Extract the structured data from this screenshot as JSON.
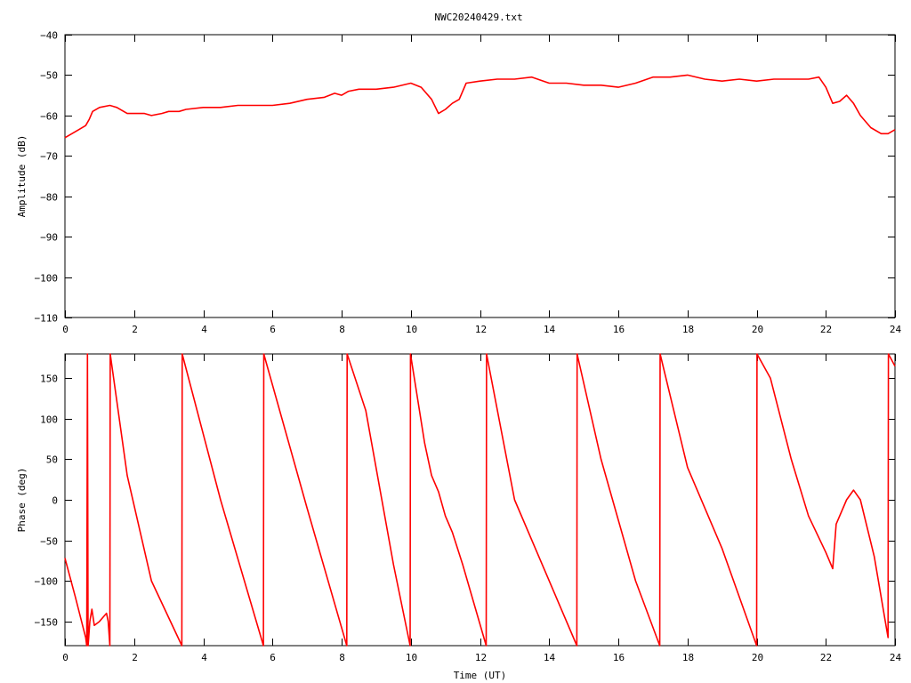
{
  "title": "NWC20240429.txt",
  "colors": {
    "series": "#ff0000",
    "axes": "#000000",
    "background": "#ffffff"
  },
  "chart_data": [
    {
      "type": "line",
      "title": "NWC20240429.txt",
      "xlabel": "",
      "ylabel": "Amplitude (dB)",
      "xlim": [
        0,
        24
      ],
      "ylim": [
        -110,
        -40
      ],
      "xticks": [
        0,
        2,
        4,
        6,
        8,
        10,
        12,
        14,
        16,
        18,
        20,
        22,
        24
      ],
      "yticks": [
        -110,
        -100,
        -90,
        -80,
        -70,
        -60,
        -50,
        -40
      ],
      "grid": false,
      "series": [
        {
          "color": "#ff0000",
          "x": [
            0,
            0.2,
            0.4,
            0.6,
            0.7,
            0.8,
            1.0,
            1.3,
            1.5,
            1.8,
            2.0,
            2.3,
            2.5,
            2.8,
            3.0,
            3.3,
            3.5,
            4.0,
            4.5,
            5.0,
            5.5,
            6.0,
            6.5,
            7.0,
            7.5,
            7.8,
            8.0,
            8.2,
            8.5,
            9.0,
            9.5,
            10.0,
            10.3,
            10.6,
            10.8,
            11.0,
            11.2,
            11.4,
            11.6,
            12.0,
            12.5,
            13.0,
            13.5,
            14.0,
            14.5,
            15.0,
            15.5,
            16.0,
            16.5,
            17.0,
            17.5,
            18.0,
            18.5,
            19.0,
            19.5,
            20.0,
            20.5,
            21.0,
            21.5,
            21.8,
            22.0,
            22.2,
            22.4,
            22.6,
            22.8,
            23.0,
            23.3,
            23.6,
            23.8,
            24.0
          ],
          "values": [
            -65.5,
            -64.5,
            -63.5,
            -62.5,
            -61,
            -59,
            -58,
            -57.5,
            -58,
            -59.5,
            -59.5,
            -59.5,
            -60,
            -59.5,
            -59,
            -59,
            -58.5,
            -58,
            -58,
            -57.5,
            -57.5,
            -57.5,
            -57,
            -56,
            -55.5,
            -54.5,
            -55,
            -54,
            -53.5,
            -53.5,
            -53,
            -52,
            -53,
            -56,
            -59.5,
            -58.5,
            -57,
            -56,
            -52,
            -51.5,
            -51,
            -51,
            -50.5,
            -52,
            -52,
            -52.5,
            -52.5,
            -53,
            -52,
            -50.5,
            -50.5,
            -50,
            -51,
            -51.5,
            -51,
            -51.5,
            -51,
            -51,
            -51,
            -50.5,
            -53,
            -57,
            -56.5,
            -55,
            -57,
            -60,
            -63,
            -64.5,
            -64.5,
            -63.5
          ]
        }
      ]
    },
    {
      "type": "line",
      "title": "",
      "xlabel": "Time (UT)",
      "ylabel": "Phase (deg)",
      "xlim": [
        0,
        24
      ],
      "ylim": [
        -180,
        180
      ],
      "xticks": [
        0,
        2,
        4,
        6,
        8,
        10,
        12,
        14,
        16,
        18,
        20,
        22,
        24
      ],
      "yticks": [
        -150,
        -100,
        -50,
        0,
        50,
        100,
        150
      ],
      "grid": false,
      "series": [
        {
          "color": "#ff0000",
          "x": [
            0,
            0.3,
            0.6,
            0.63,
            0.65,
            0.67,
            0.68,
            0.72,
            0.78,
            0.85,
            1.0,
            1.1,
            1.2,
            1.25,
            1.3,
            1.31,
            1.8,
            2.5,
            3.38,
            3.39,
            4.5,
            5.74,
            5.75,
            7.0,
            8.15,
            8.16,
            8.7,
            9.5,
            9.98,
            9.99,
            10.4,
            10.6,
            10.8,
            11.0,
            11.2,
            11.5,
            12.18,
            12.19,
            13.0,
            14.0,
            14.8,
            14.81,
            15.5,
            16.5,
            17.2,
            17.21,
            18.0,
            19.0,
            20.0,
            20.01,
            20.4,
            21.0,
            21.5,
            22.0,
            22.15,
            22.2,
            22.3,
            22.6,
            22.8,
            23.0,
            23.4,
            23.8,
            23.81,
            24.0
          ],
          "values": [
            -72,
            -120,
            -170,
            -180,
            180,
            -180,
            -175,
            -150,
            -135,
            -155,
            -150,
            -145,
            -140,
            -150,
            -180,
            180,
            30,
            -100,
            -180,
            180,
            0,
            -180,
            180,
            -10,
            -180,
            180,
            110,
            -80,
            -180,
            180,
            70,
            30,
            10,
            -20,
            -40,
            -80,
            -180,
            180,
            0,
            -100,
            -180,
            180,
            50,
            -100,
            -180,
            180,
            40,
            -60,
            -180,
            180,
            150,
            50,
            -20,
            -65,
            -80,
            -85,
            -30,
            0,
            12,
            0,
            -70,
            -170,
            180,
            165
          ]
        }
      ]
    }
  ]
}
